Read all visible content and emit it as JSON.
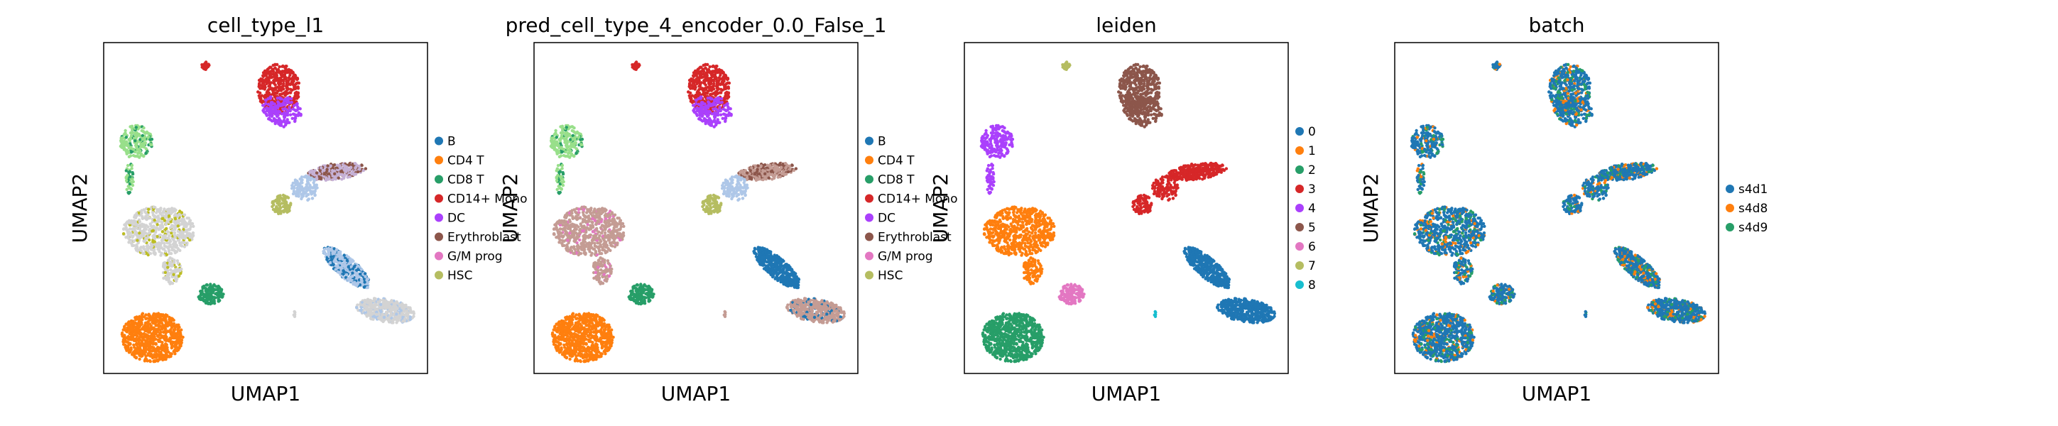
{
  "figure": {
    "background": "#ffffff"
  },
  "chart_data": [
    {
      "type": "scatter",
      "title": "cell_type_l1",
      "xlabel": "UMAP1",
      "ylabel": "UMAP2",
      "ticks": "none",
      "grid": false,
      "legend": "right",
      "legend_entries": [
        {
          "label": "B",
          "color": "#1f77b4"
        },
        {
          "label": "CD4 T",
          "color": "#ff7f0e"
        },
        {
          "label": "CD8 T",
          "color": "#279e68"
        },
        {
          "label": "CD14+ Mono",
          "color": "#d62728"
        },
        {
          "label": "DC",
          "color": "#aa40fc"
        },
        {
          "label": "Erythroblast",
          "color": "#8c564b"
        },
        {
          "label": "G/M prog",
          "color": "#e377c2"
        },
        {
          "label": "HSC",
          "color": "#b5bd61"
        }
      ],
      "unlabeled_color": "#d3d3d3"
    },
    {
      "type": "scatter",
      "title": "pred_cell_type_4_encoder_0.0_False_1",
      "xlabel": "UMAP1",
      "ylabel": "UMAP2",
      "ticks": "none",
      "grid": false,
      "legend": "right",
      "legend_entries": [
        {
          "label": "B",
          "color": "#1f77b4"
        },
        {
          "label": "CD4 T",
          "color": "#ff7f0e"
        },
        {
          "label": "CD8 T",
          "color": "#279e68"
        },
        {
          "label": "CD14+ Mono",
          "color": "#d62728"
        },
        {
          "label": "DC",
          "color": "#aa40fc"
        },
        {
          "label": "Erythroblast",
          "color": "#8c564b"
        },
        {
          "label": "G/M prog",
          "color": "#e377c2"
        },
        {
          "label": "HSC",
          "color": "#b5bd61"
        }
      ],
      "extra_color": "#c49c94"
    },
    {
      "type": "scatter",
      "title": "leiden",
      "xlabel": "UMAP1",
      "ylabel": "UMAP2",
      "ticks": "none",
      "grid": false,
      "legend": "right",
      "legend_entries": [
        {
          "label": "0",
          "color": "#1f77b4"
        },
        {
          "label": "1",
          "color": "#ff7f0e"
        },
        {
          "label": "2",
          "color": "#279e68"
        },
        {
          "label": "3",
          "color": "#d62728"
        },
        {
          "label": "4",
          "color": "#aa40fc"
        },
        {
          "label": "5",
          "color": "#8c564b"
        },
        {
          "label": "6",
          "color": "#e377c2"
        },
        {
          "label": "7",
          "color": "#b5bd61"
        },
        {
          "label": "8",
          "color": "#17becf"
        }
      ]
    },
    {
      "type": "scatter",
      "title": "batch",
      "xlabel": "UMAP1",
      "ylabel": "UMAP2",
      "ticks": "none",
      "grid": false,
      "legend": "right",
      "legend_entries": [
        {
          "label": "s4d1",
          "color": "#1f77b4"
        },
        {
          "label": "s4d8",
          "color": "#ff7f0e"
        },
        {
          "label": "s4d9",
          "color": "#279e68"
        }
      ]
    }
  ]
}
